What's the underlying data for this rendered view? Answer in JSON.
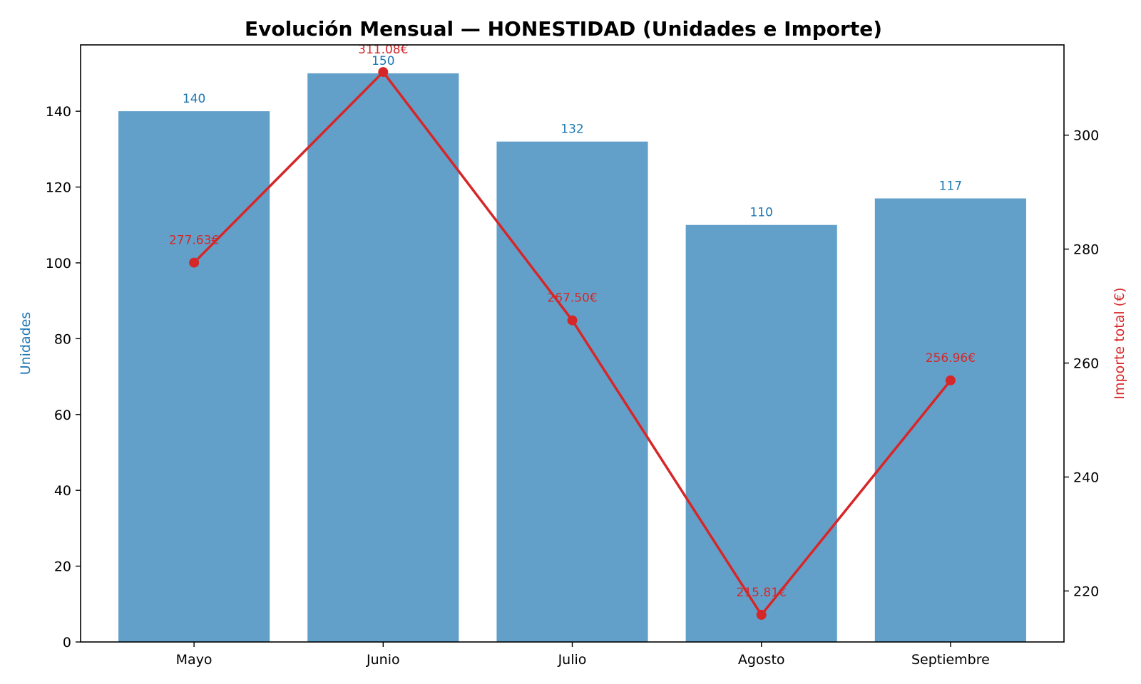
{
  "chart_data": {
    "type": "bar",
    "title": "Evolución Mensual — HONESTIDAD (Unidades e Importe)",
    "categories": [
      "Mayo",
      "Junio",
      "Julio",
      "Agosto",
      "Septiembre"
    ],
    "series": [
      {
        "name": "Unidades",
        "type": "bar",
        "axis": "left",
        "values": [
          140,
          150,
          132,
          110,
          117
        ],
        "labels": [
          "140",
          "150",
          "132",
          "110",
          "117"
        ]
      },
      {
        "name": "Importe total (€)",
        "type": "line",
        "axis": "right",
        "values": [
          277.63,
          311.08,
          267.5,
          215.81,
          256.96
        ],
        "labels": [
          "277.63€",
          "311.08€",
          "267.50€",
          "215.81€",
          "256.96€"
        ]
      }
    ],
    "ylabel": "Unidades",
    "ylim": [
      0,
      157.5
    ],
    "yticks": [
      0,
      20,
      40,
      60,
      80,
      100,
      120,
      140
    ],
    "y2label": "Importe total (€)",
    "y2lim": [
      211.05,
      315.84
    ],
    "y2ticks": [
      220,
      240,
      260,
      280,
      300
    ],
    "colors": {
      "bars": "#1f77b4",
      "line": "#d62728",
      "bar_text": "#1f77b4",
      "line_text": "#d62728"
    },
    "grid": false,
    "legend": "none"
  }
}
